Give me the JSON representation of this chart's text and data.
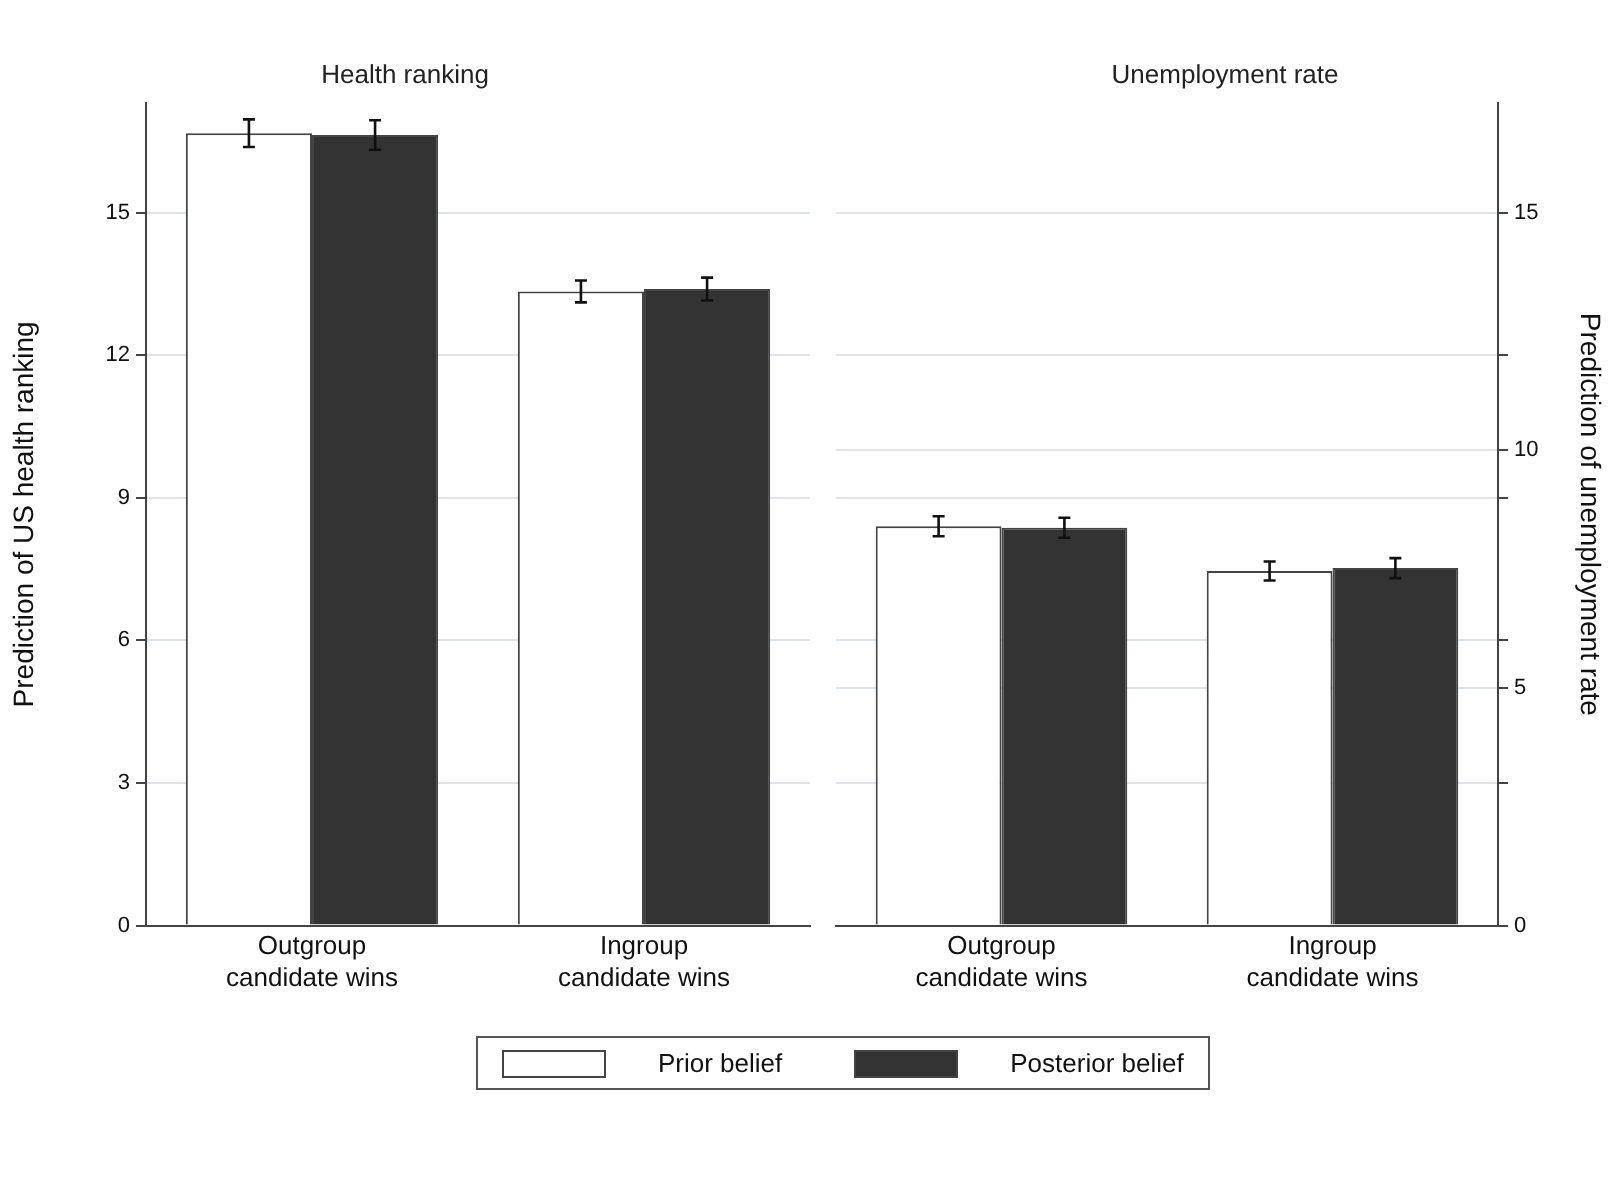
{
  "chart_data": [
    {
      "type": "bar",
      "title": "Health ranking",
      "ylabel": "Prediction of US health ranking",
      "categories": [
        "Outgroup candidate wins",
        "Ingroup candidate wins"
      ],
      "ylim": [
        0,
        17.3
      ],
      "yticks": [
        0,
        3,
        6,
        9,
        12,
        15
      ],
      "grid": "y",
      "legend": "bottom",
      "series": [
        {
          "name": "Prior belief",
          "color": "#ffffff",
          "values": [
            16.67,
            13.34
          ],
          "errors": [
            0.29,
            0.23
          ]
        },
        {
          "name": "Posterior belief",
          "color": "#333333",
          "values": [
            16.63,
            13.39
          ],
          "errors": [
            0.31,
            0.24
          ]
        }
      ]
    },
    {
      "type": "bar",
      "title": "Unemployment rate",
      "ylabel": "Prediction of unemployment rate",
      "categories": [
        "Outgroup candidate wins",
        "Ingroup candidate wins"
      ],
      "ylim": [
        0,
        17.3
      ],
      "yticks": [
        0,
        {
          "value": 3,
          "label": null
        },
        5,
        {
          "value": 6,
          "label": null
        },
        {
          "value": 9,
          "label": null
        },
        10,
        {
          "value": 12,
          "label": null
        },
        15
      ],
      "grid": "y",
      "series": [
        {
          "color": "#ffffff",
          "values": [
            8.4,
            7.46
          ],
          "errors": [
            0.21,
            0.2
          ]
        },
        {
          "color": "#333333",
          "values": [
            8.37,
            7.52
          ],
          "errors": [
            0.21,
            0.21
          ]
        }
      ]
    }
  ]
}
